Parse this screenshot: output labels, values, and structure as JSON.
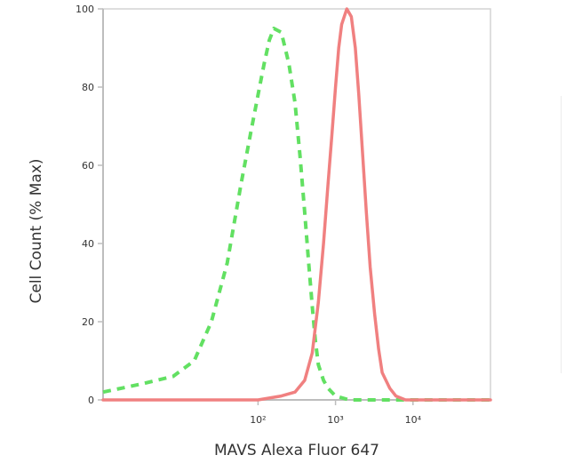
{
  "chart_data": {
    "type": "area",
    "title": "",
    "xlabel": "MAVS Alexa Fluor 647",
    "ylabel": "Cell Count (% Max)",
    "xscale": "log",
    "xlim": [
      1,
      100000
    ],
    "ylim": [
      0,
      100
    ],
    "grid": false,
    "y_ticks": [
      0,
      20,
      40,
      60,
      80,
      100
    ],
    "y_tick_labels": [
      "0",
      "20",
      "40",
      "60",
      "80",
      "100"
    ],
    "x_ticks": [
      100,
      1000,
      10000
    ],
    "x_tick_labels": [
      "10²",
      "10³",
      "10⁴"
    ],
    "series": [
      {
        "color": "#62e062",
        "dash": true,
        "x": [
          1,
          3,
          8,
          15,
          25,
          40,
          60,
          80,
          100,
          120,
          140,
          160,
          200,
          250,
          300,
          350,
          400,
          450,
          500,
          550,
          600,
          700,
          800,
          1000,
          1500,
          2000,
          3000,
          5000,
          10000,
          20000,
          50000,
          100000
        ],
        "y": [
          2,
          4,
          6,
          10,
          20,
          35,
          55,
          68,
          78,
          86,
          92,
          95,
          94,
          86,
          76,
          62,
          48,
          35,
          24,
          15,
          9,
          5,
          3,
          1,
          0,
          0,
          0,
          0,
          0,
          0,
          0,
          0
        ]
      },
      {
        "color": "#f08080",
        "dash": false,
        "x": [
          1,
          100,
          200,
          300,
          400,
          500,
          600,
          700,
          800,
          900,
          1000,
          1100,
          1200,
          1400,
          1600,
          1800,
          2000,
          2200,
          2500,
          2800,
          3200,
          3600,
          4000,
          5000,
          6000,
          8000,
          10000,
          20000,
          50000,
          100000
        ],
        "y": [
          0,
          0,
          1,
          2,
          5,
          12,
          25,
          40,
          55,
          68,
          80,
          90,
          96,
          100,
          98,
          90,
          78,
          65,
          48,
          34,
          22,
          13,
          7,
          3,
          1,
          0,
          0,
          0,
          0,
          0
        ]
      }
    ]
  }
}
